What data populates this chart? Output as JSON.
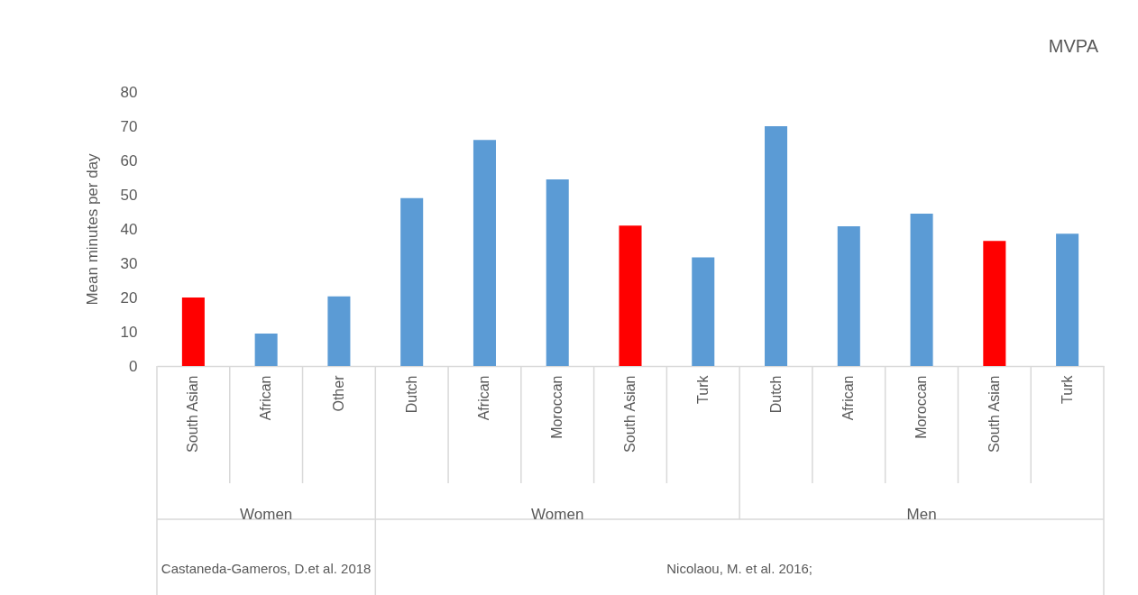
{
  "chart_data": {
    "type": "bar",
    "title": "MVPA",
    "ylabel": "Mean minutes per day",
    "categories": [
      "South Asian",
      "African",
      "Other",
      "Dutch",
      "African",
      "Moroccan",
      "South Asian",
      "Turk",
      "Dutch",
      "African",
      "Moroccan",
      "South Asian",
      "Turk"
    ],
    "values": [
      20,
      9.5,
      20.3,
      49,
      66,
      54.5,
      41,
      31.7,
      70,
      40.8,
      44.5,
      36.5,
      38.6
    ],
    "colors": [
      "#ff0000",
      "#5b9bd5",
      "#5b9bd5",
      "#5b9bd5",
      "#5b9bd5",
      "#5b9bd5",
      "#ff0000",
      "#5b9bd5",
      "#5b9bd5",
      "#5b9bd5",
      "#5b9bd5",
      "#ff0000",
      "#5b9bd5"
    ],
    "ylim": [
      0,
      80
    ],
    "yticks": [
      0,
      10,
      20,
      30,
      40,
      50,
      60,
      70,
      80
    ],
    "grid": false,
    "annotations": [
      "Women",
      "Women",
      "Men",
      "Castaneda-Gameros, D.et al. 2018",
      "Nicolaou, M. et al. 2016;"
    ]
  }
}
